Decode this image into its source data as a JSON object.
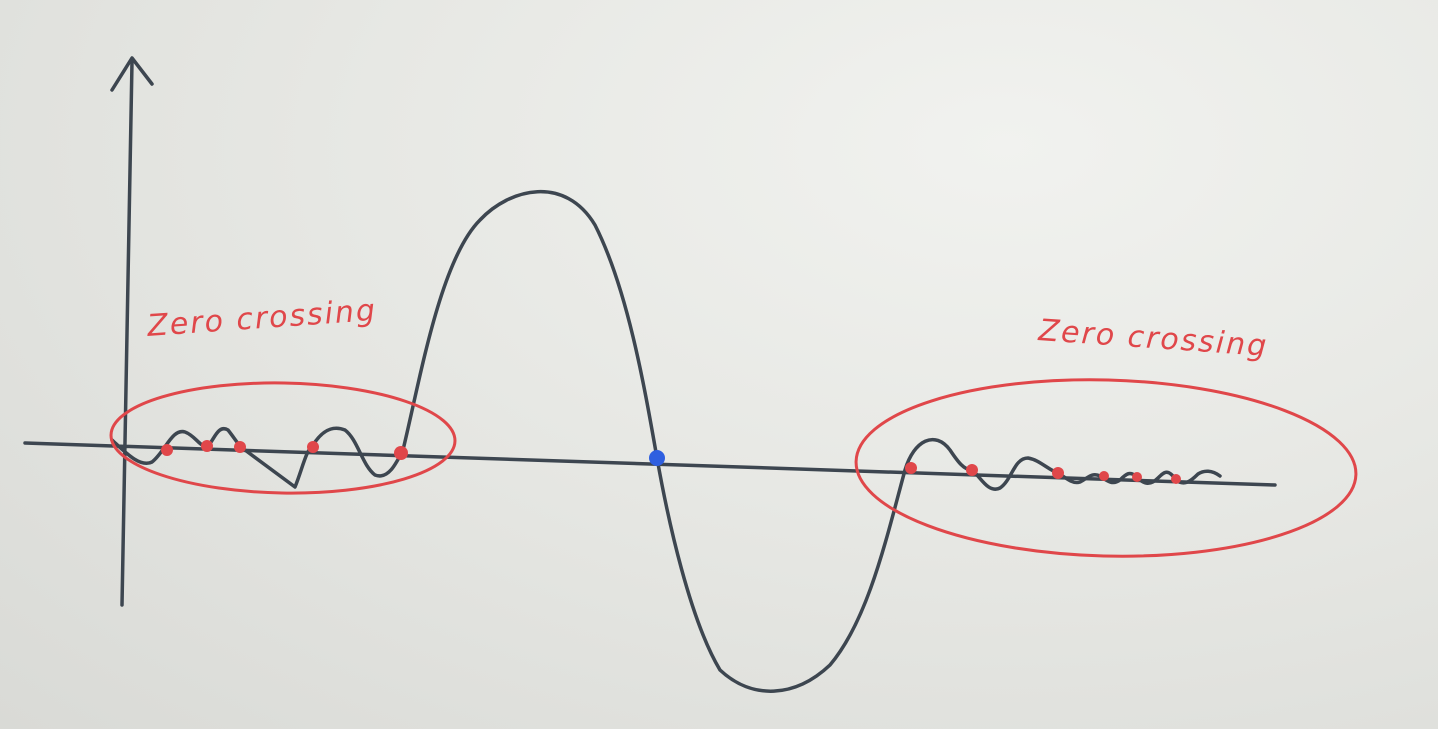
{
  "annotations": {
    "left_label": "Zero crossing",
    "right_label": "Zero crossing"
  },
  "colors": {
    "ink": "#3d4650",
    "annotation": "#e0474a",
    "highlight_point": "#2f5fe0",
    "paper": "#e6e7e3"
  },
  "marks": {
    "left_zero_crossings": 5,
    "right_zero_crossings": 6,
    "center_crossings": 1
  }
}
